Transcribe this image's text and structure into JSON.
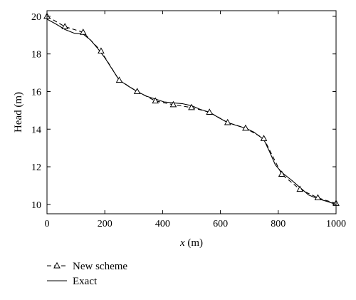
{
  "chart_data": {
    "type": "line",
    "xlabel_var": "x",
    "xlabel_unit": " (m)",
    "ylabel": "Head (m)",
    "xlim": [
      0,
      1000
    ],
    "ylim": [
      9.5,
      20.3
    ],
    "xticks": [
      0,
      200,
      400,
      600,
      800,
      1000
    ],
    "yticks": [
      10,
      12,
      14,
      16,
      18,
      20
    ],
    "grid": false,
    "legend_position": "bottom-left",
    "series": [
      {
        "name": "New scheme",
        "style": "dashed-triangle",
        "x": [
          0,
          62,
          125,
          187,
          250,
          312,
          375,
          437,
          500,
          562,
          625,
          687,
          750,
          812,
          875,
          937,
          1000
        ],
        "y": [
          20.0,
          19.45,
          19.15,
          18.15,
          16.6,
          16.0,
          15.5,
          15.3,
          15.15,
          14.9,
          14.35,
          14.05,
          13.5,
          11.6,
          10.8,
          10.35,
          10.05
        ]
      },
      {
        "name": "Exact",
        "style": "solid",
        "x": [
          0,
          30,
          62,
          95,
          125,
          150,
          175,
          200,
          225,
          250,
          280,
          312,
          345,
          375,
          405,
          437,
          470,
          500,
          530,
          562,
          595,
          625,
          655,
          687,
          715,
          750,
          770,
          790,
          812,
          845,
          875,
          905,
          937,
          970,
          1000
        ],
        "y": [
          19.85,
          19.6,
          19.3,
          19.1,
          19.05,
          18.75,
          18.3,
          17.8,
          17.2,
          16.6,
          16.3,
          16.0,
          15.75,
          15.6,
          15.45,
          15.4,
          15.35,
          15.25,
          15.05,
          14.9,
          14.6,
          14.35,
          14.2,
          14.05,
          13.85,
          13.45,
          12.8,
          12.1,
          11.7,
          11.3,
          10.9,
          10.5,
          10.3,
          10.15,
          10.0
        ]
      }
    ]
  }
}
